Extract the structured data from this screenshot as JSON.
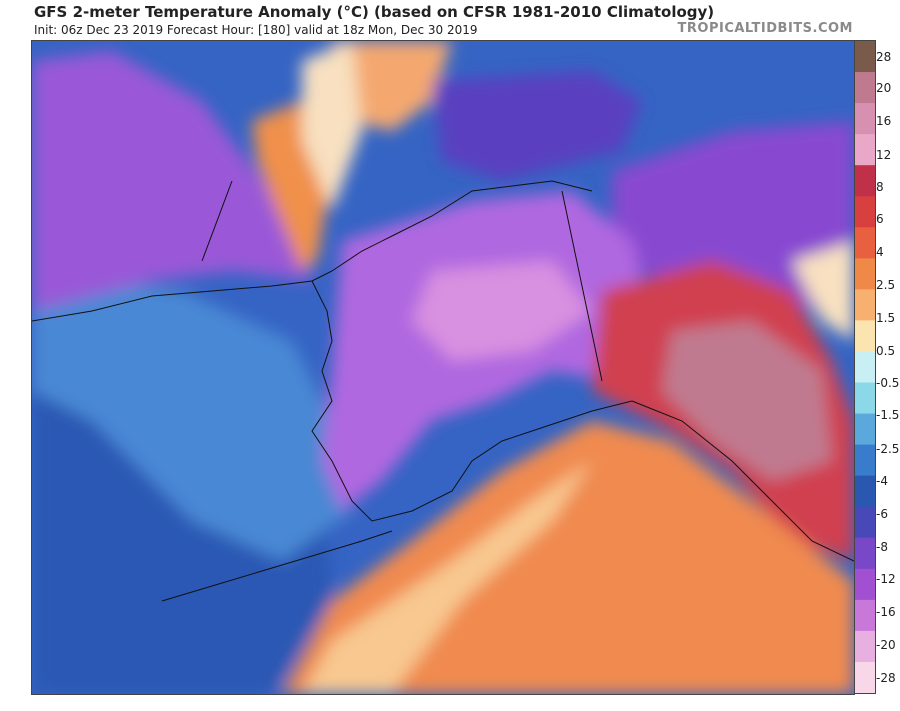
{
  "header": {
    "title": "GFS 2-meter Temperature Anomaly (°C) (based on CFSR 1981-2010 Climatology)",
    "subtitle": "Init: 06z Dec 23 2019   Forecast Hour: [180]   valid at 18z Mon, Dec 30 2019",
    "credit": "TROPICALTIDBITS.COM"
  },
  "colorbar": {
    "labels": [
      "28",
      "20",
      "16",
      "12",
      "8",
      "6",
      "4",
      "2.5",
      "1.5",
      "0.5",
      "-0.5",
      "-1.5",
      "-2.5",
      "-4",
      "-6",
      "-8",
      "-12",
      "-16",
      "-20",
      "-28"
    ],
    "colors": [
      "#7a5a4a",
      "#c07a90",
      "#d890b0",
      "#eaa8c8",
      "#c03048",
      "#d84040",
      "#e86040",
      "#f08848",
      "#f8b070",
      "#fbe4b0",
      "#c8f0f4",
      "#8ad8e8",
      "#5aa8dc",
      "#3a7ccc",
      "#2a58b0",
      "#4848b8",
      "#7848c8",
      "#a050d0",
      "#c878d8",
      "#e8b0e0",
      "#f8d8e8"
    ]
  },
  "map": {
    "region": "Alaska",
    "colors": {
      "ocean_cold": "#3a6cc8",
      "ocean_warm": "#f08a50",
      "land_cold": "#b060e0",
      "land_warm": "#d04050"
    }
  }
}
